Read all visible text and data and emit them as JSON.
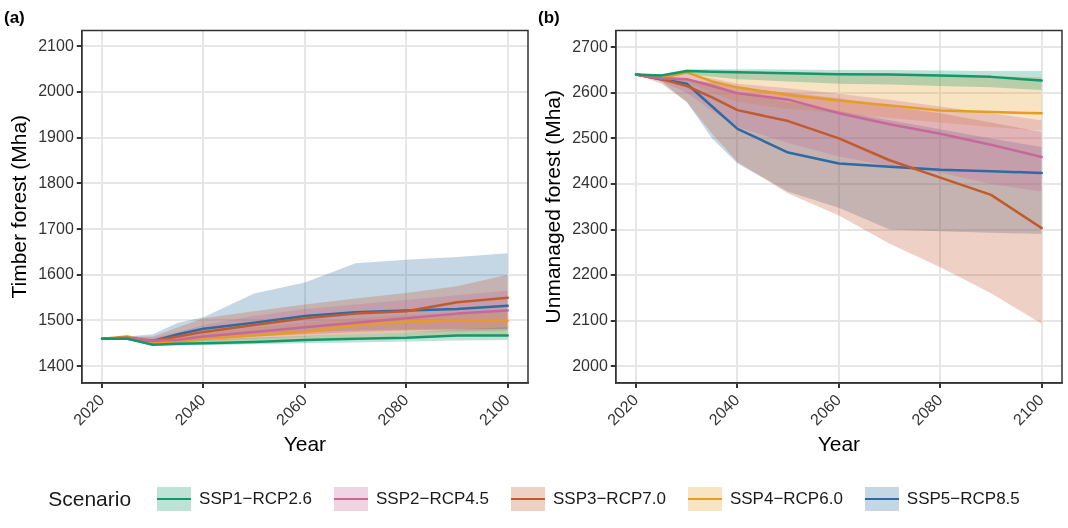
{
  "chart_data": [
    {
      "type": "line",
      "title": "(a)",
      "xlabel": "Year",
      "ylabel": "Timber forest (Mha)",
      "legend_title": "Scenario",
      "legend": "bottom",
      "grid": true,
      "marker": "none",
      "line_style": "solid",
      "x": [
        2020,
        2025,
        2030,
        2035,
        2040,
        2050,
        2060,
        2070,
        2080,
        2090,
        2100
      ],
      "xlim": [
        2016,
        2104
      ],
      "xticks": [
        2020,
        2040,
        2060,
        2080,
        2100
      ],
      "ylim": [
        1363,
        2135
      ],
      "yticks": [
        1400,
        1500,
        1600,
        1700,
        1800,
        1900,
        2000,
        2100
      ],
      "series": [
        {
          "name": "SSP1−RCP2.6",
          "color": "#13976b",
          "values": [
            1460,
            1460,
            1447,
            1449,
            1450,
            1453,
            1457,
            1460,
            1462,
            1467,
            1467
          ],
          "lower": [
            1460,
            1458,
            1444,
            1445,
            1446,
            1448,
            1450,
            1452,
            1454,
            1456,
            1457
          ],
          "upper": [
            1460,
            1462,
            1452,
            1455,
            1458,
            1462,
            1466,
            1470,
            1474,
            1480,
            1485
          ]
        },
        {
          "name": "SSP2−RCP4.5",
          "color": "#c6699a",
          "values": [
            1460,
            1462,
            1455,
            1458,
            1465,
            1475,
            1485,
            1495,
            1505,
            1515,
            1522
          ],
          "lower": [
            1460,
            1458,
            1448,
            1450,
            1455,
            1460,
            1465,
            1470,
            1475,
            1476,
            1478
          ],
          "upper": [
            1460,
            1465,
            1462,
            1475,
            1490,
            1510,
            1525,
            1535,
            1545,
            1555,
            1565
          ]
        },
        {
          "name": "SSP3−RCP7.0",
          "color": "#c25b2c",
          "values": [
            1460,
            1462,
            1455,
            1465,
            1475,
            1490,
            1505,
            1515,
            1520,
            1540,
            1550
          ],
          "lower": [
            1460,
            1458,
            1448,
            1452,
            1458,
            1465,
            1470,
            1475,
            1478,
            1480,
            1482
          ],
          "upper": [
            1460,
            1465,
            1465,
            1485,
            1505,
            1520,
            1535,
            1548,
            1560,
            1575,
            1600
          ]
        },
        {
          "name": "SSP4−RCP6.0",
          "color": "#e59d24",
          "values": [
            1460,
            1465,
            1450,
            1455,
            1460,
            1467,
            1475,
            1490,
            1498,
            1500,
            1500
          ],
          "lower": [
            1460,
            1460,
            1445,
            1448,
            1452,
            1455,
            1458,
            1462,
            1465,
            1466,
            1468
          ],
          "upper": [
            1460,
            1468,
            1458,
            1465,
            1475,
            1485,
            1495,
            1505,
            1512,
            1515,
            1520
          ]
        },
        {
          "name": "SSP5−RCP8.5",
          "color": "#2e6aa3",
          "values": [
            1460,
            1460,
            1455,
            1470,
            1482,
            1495,
            1510,
            1518,
            1522,
            1525,
            1532
          ],
          "lower": [
            1460,
            1457,
            1450,
            1455,
            1462,
            1470,
            1475,
            1478,
            1480,
            1481,
            1482
          ],
          "upper": [
            1460,
            1465,
            1470,
            1495,
            1507,
            1559,
            1583,
            1625,
            1633,
            1639,
            1647
          ]
        }
      ]
    },
    {
      "type": "line",
      "title": "(b)",
      "xlabel": "Year",
      "ylabel": "Unmanaged forest (Mha)",
      "grid": true,
      "marker": "none",
      "line_style": "solid",
      "x": [
        2020,
        2025,
        2030,
        2035,
        2040,
        2050,
        2060,
        2070,
        2080,
        2090,
        2100
      ],
      "xlim": [
        2016,
        2104
      ],
      "xticks": [
        2020,
        2040,
        2060,
        2080,
        2100
      ],
      "ylim": [
        1963,
        2737
      ],
      "yticks": [
        2000,
        2100,
        2200,
        2300,
        2400,
        2500,
        2600,
        2700
      ],
      "series": [
        {
          "color": "#13976b",
          "values": [
            2640,
            2638,
            2648,
            2646,
            2645,
            2643,
            2641,
            2640,
            2638,
            2635,
            2627
          ],
          "lower": [
            2640,
            2636,
            2640,
            2635,
            2630,
            2625,
            2620,
            2618,
            2615,
            2612,
            2606
          ],
          "upper": [
            2640,
            2640,
            2652,
            2652,
            2652,
            2651,
            2650,
            2650,
            2649,
            2648,
            2648
          ]
        },
        {
          "color": "#c6699a",
          "values": [
            2640,
            2632,
            2630,
            2615,
            2599,
            2585,
            2555,
            2531,
            2510,
            2486,
            2459
          ],
          "lower": [
            2640,
            2625,
            2600,
            2560,
            2525,
            2490,
            2460,
            2440,
            2425,
            2400,
            2383
          ],
          "upper": [
            2640,
            2636,
            2640,
            2632,
            2620,
            2610,
            2598,
            2585,
            2570,
            2555,
            2540
          ]
        },
        {
          "color": "#c25b2c",
          "values": [
            2640,
            2630,
            2615,
            2590,
            2562,
            2538,
            2500,
            2452,
            2414,
            2376,
            2303
          ],
          "lower": [
            2640,
            2620,
            2580,
            2510,
            2448,
            2379,
            2331,
            2269,
            2217,
            2160,
            2093
          ],
          "upper": [
            2640,
            2635,
            2630,
            2622,
            2612,
            2600,
            2588,
            2570,
            2555,
            2535,
            2514
          ]
        },
        {
          "color": "#e59d24",
          "values": [
            2640,
            2632,
            2645,
            2625,
            2612,
            2595,
            2583,
            2572,
            2561,
            2558,
            2555
          ],
          "lower": [
            2640,
            2628,
            2625,
            2600,
            2580,
            2565,
            2555,
            2545,
            2535,
            2525,
            2517
          ],
          "upper": [
            2640,
            2636,
            2650,
            2648,
            2646,
            2645,
            2643,
            2641,
            2638,
            2636,
            2634
          ]
        },
        {
          "color": "#2e6aa3",
          "values": [
            2640,
            2630,
            2620,
            2570,
            2521,
            2469,
            2445,
            2438,
            2431,
            2428,
            2424
          ],
          "lower": [
            2640,
            2625,
            2580,
            2500,
            2445,
            2383,
            2348,
            2300,
            2296,
            2293,
            2290
          ],
          "upper": [
            2640,
            2636,
            2632,
            2620,
            2600,
            2580,
            2560,
            2540,
            2520,
            2500,
            2481
          ]
        }
      ]
    }
  ]
}
